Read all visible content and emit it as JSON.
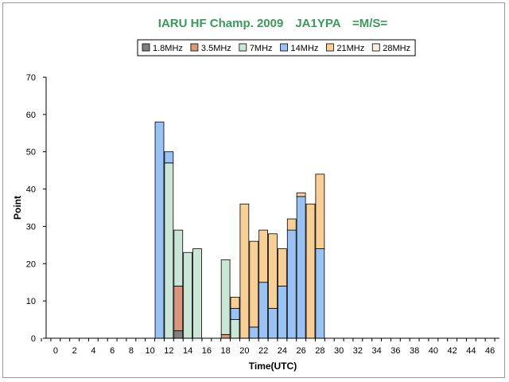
{
  "chart_data": {
    "type": "bar",
    "stacked": true,
    "title": "IARU HF Champ. 2009　JA1YPA　=M/S=",
    "xlabel": "Time(UTC)",
    "ylabel": "Point",
    "ylim": [
      0,
      70
    ],
    "yticks": [
      0,
      10,
      20,
      30,
      40,
      50,
      60,
      70
    ],
    "xlim": [
      -1,
      47
    ],
    "xticks": [
      0,
      2,
      4,
      6,
      8,
      10,
      12,
      14,
      16,
      18,
      20,
      22,
      24,
      26,
      28,
      30,
      32,
      34,
      36,
      38,
      40,
      42,
      44,
      46
    ],
    "grid": false,
    "legend_position": "top",
    "x": [
      11,
      12,
      13,
      14,
      15,
      18,
      19,
      20,
      21,
      22,
      23,
      24,
      25,
      26,
      27,
      28
    ],
    "series": [
      {
        "name": "1.8MHz",
        "color": "#808080",
        "values": [
          0,
          0,
          2,
          0,
          0,
          0,
          0,
          0,
          0,
          0,
          0,
          0,
          0,
          0,
          0,
          0
        ]
      },
      {
        "name": "3.5MHz",
        "color": "#d9967a",
        "values": [
          0,
          0,
          12,
          0,
          0,
          1,
          0,
          0,
          0,
          0,
          0,
          0,
          0,
          0,
          0,
          0
        ]
      },
      {
        "name": "7MHz",
        "color": "#c9e6d6",
        "values": [
          0,
          47,
          15,
          23,
          24,
          20,
          5,
          0,
          0,
          0,
          0,
          0,
          0,
          0,
          0,
          0
        ]
      },
      {
        "name": "14MHz",
        "color": "#99c2f5",
        "values": [
          58,
          3,
          0,
          0,
          0,
          0,
          3,
          0,
          3,
          15,
          8,
          14,
          29,
          38,
          0,
          24
        ]
      },
      {
        "name": "21MHz",
        "color": "#f8cf94",
        "values": [
          0,
          0,
          0,
          0,
          0,
          0,
          3,
          36,
          23,
          14,
          20,
          10,
          3,
          1,
          36,
          20
        ]
      },
      {
        "name": "28MHz",
        "color": "#f5eee3",
        "values": [
          0,
          0,
          0,
          0,
          0,
          0,
          0,
          0,
          0,
          0,
          0,
          0,
          0,
          0,
          0,
          0
        ]
      }
    ]
  }
}
